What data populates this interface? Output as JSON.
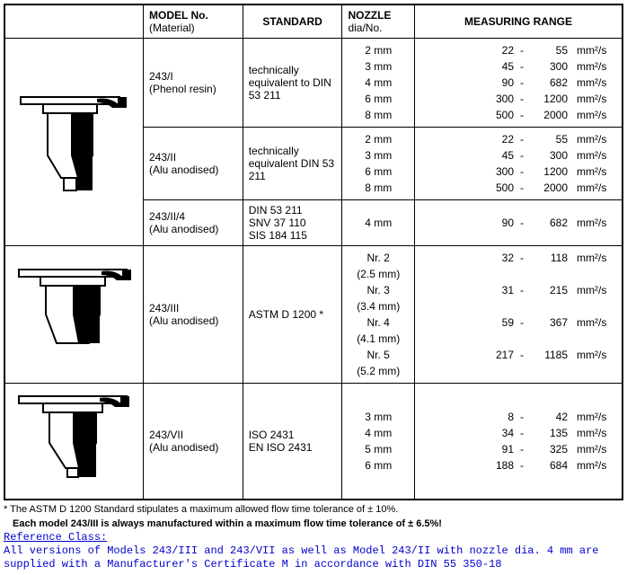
{
  "headers": {
    "diagram": "",
    "model": "MODEL No.",
    "material_label": "(Material)",
    "standard": "STANDARD",
    "nozzle": "NOZZLE",
    "nozzle_sub": "dia/No.",
    "range": "MEASURING RANGE"
  },
  "unit": "mm²/s",
  "groups": [
    {
      "diagram_svg": "cup_a",
      "rows": [
        {
          "model": "243/I",
          "material": "(Phenol resin)",
          "standard": "technically equivalent to DIN 53 211",
          "nozzles": [
            "2 mm",
            "3 mm",
            "4 mm",
            "6 mm",
            "8 mm"
          ],
          "ranges": [
            [
              22,
              55
            ],
            [
              45,
              300
            ],
            [
              90,
              682
            ],
            [
              300,
              1200
            ],
            [
              500,
              2000
            ]
          ]
        },
        {
          "model": "243/II",
          "material": "(Alu anodised)",
          "standard": "technically equivalent DIN 53 211",
          "nozzles": [
            "2 mm",
            "3 mm",
            "6 mm",
            "8 mm"
          ],
          "ranges": [
            [
              22,
              55
            ],
            [
              45,
              300
            ],
            [
              300,
              1200
            ],
            [
              500,
              2000
            ]
          ]
        },
        {
          "model": "243/II/4",
          "material": "(Alu anodised)",
          "standard": "DIN 53 211\nSNV 37 110\nSIS 184 115",
          "nozzles": [
            "4 mm"
          ],
          "ranges": [
            [
              90,
              682
            ]
          ]
        }
      ]
    },
    {
      "diagram_svg": "cup_b",
      "rows": [
        {
          "model": "243/III",
          "material": "(Alu anodised)",
          "standard": "ASTM D 1200 *",
          "nozzles": [
            "Nr. 2\n(2.5 mm)",
            "Nr. 3\n(3.4 mm)",
            "Nr. 4\n(4.1 mm)",
            "Nr. 5\n(5.2 mm)"
          ],
          "ranges": [
            [
              32,
              118
            ],
            [
              31,
              215
            ],
            [
              59,
              367
            ],
            [
              217,
              1185
            ]
          ]
        }
      ]
    },
    {
      "diagram_svg": "cup_c",
      "rows": [
        {
          "model": "243/VII",
          "material": "(Alu anodised)",
          "standard": "ISO 2431\nEN ISO 2431",
          "nozzles": [
            "3 mm",
            "4 mm",
            "5 mm",
            "6 mm"
          ],
          "ranges": [
            [
              8,
              42
            ],
            [
              34,
              135
            ],
            [
              91,
              325
            ],
            [
              188,
              684
            ]
          ]
        }
      ]
    }
  ],
  "footnote1": "*  The ASTM D 1200 Standard stipulates a maximum allowed flow time tolerance of ± 10%.",
  "footnote2": "Each model 243/III is always manufactured within a maximum flow time tolerance of ± 6.5%!",
  "reference_heading": "Reference Class:",
  "reference_body": "All versions of Models 243/III and 243/VII as well as Model 243/II with nozzle dia. 4 mm are supplied with a Manufacturer's Certificate M in accordance with DIN 55 350-18",
  "colwidths": {
    "diagram": "150",
    "model": "110",
    "standard": "110",
    "nozzle": "80",
    "range": "230"
  },
  "colors": {
    "border": "#000000",
    "text": "#000000",
    "ref": "#0000cc",
    "bg": "#ffffff"
  }
}
